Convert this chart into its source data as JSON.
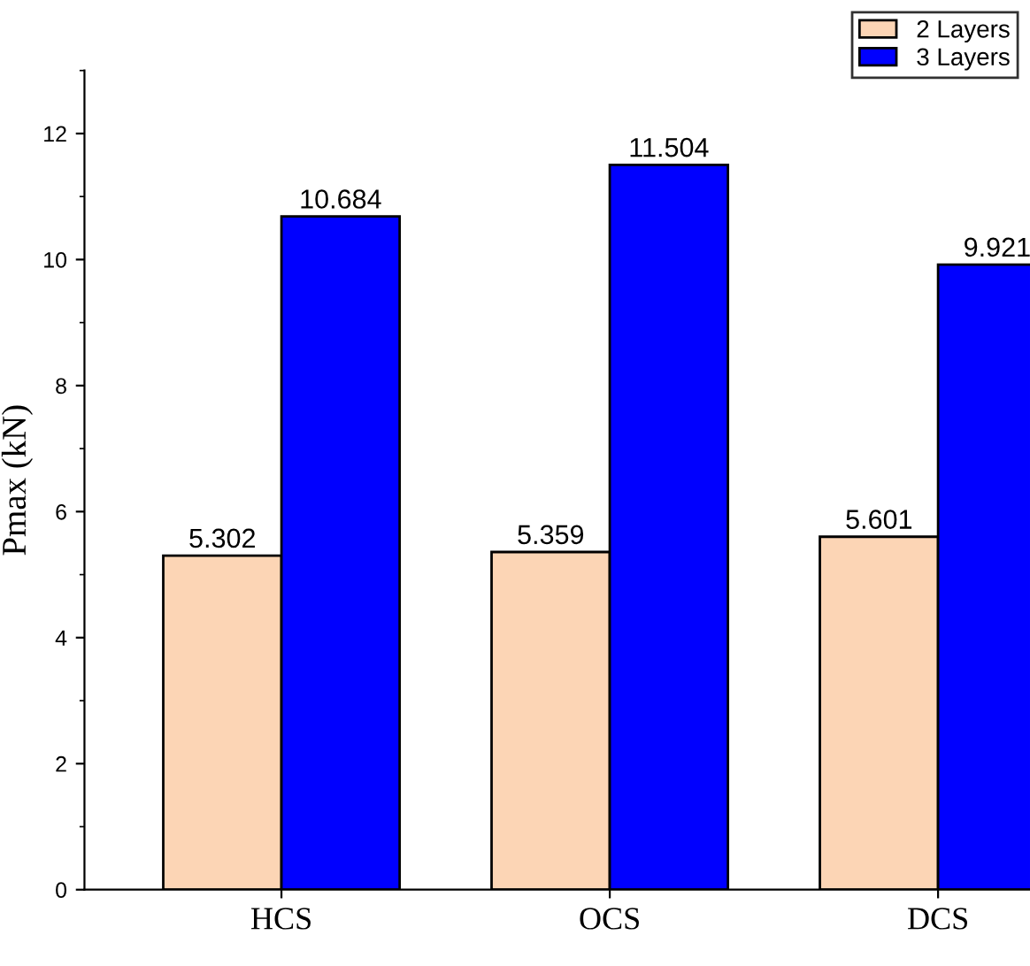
{
  "chart_data": {
    "type": "bar",
    "ylabel": "Pmax (kN)",
    "categories": [
      "HCS",
      "OCS",
      "DCS"
    ],
    "series": [
      {
        "name": "2 Layers",
        "color": "#fcd5b5",
        "values": [
          5.302,
          5.359,
          5.601
        ]
      },
      {
        "name": "3 Layers",
        "color": "#0000ff",
        "values": [
          10.684,
          11.504,
          9.921
        ]
      }
    ],
    "ylim": [
      0,
      13
    ],
    "yticks": [
      0,
      2,
      4,
      6,
      8,
      10,
      12
    ],
    "data_labels": true,
    "legend": "top right",
    "grid": false
  }
}
